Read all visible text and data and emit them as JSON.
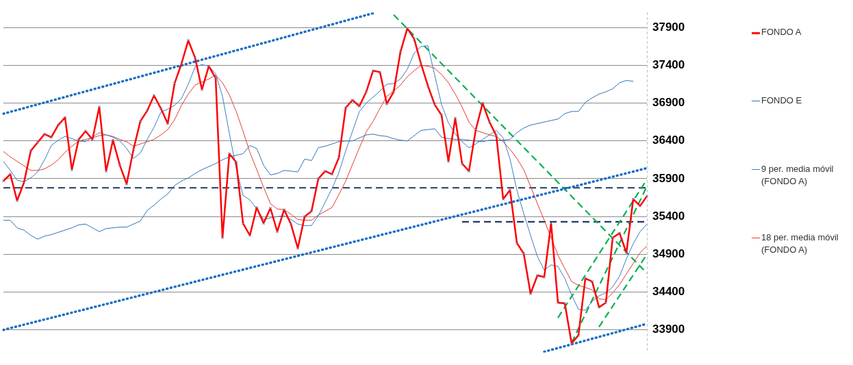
{
  "chart_data": {
    "type": "line",
    "yticks": [
      33900,
      34400,
      34900,
      35400,
      35900,
      36400,
      36900,
      37400,
      37900
    ],
    "ylim": [
      33600,
      38100
    ],
    "grid": "y",
    "legend": "right",
    "tick_labels": "y",
    "categories": [
      null,
      null,
      null,
      null,
      null,
      null,
      null,
      null,
      null,
      null,
      null,
      null,
      null,
      null,
      null,
      null,
      null,
      null,
      null,
      null,
      null,
      null,
      null,
      null,
      null,
      null,
      null,
      null,
      null,
      null,
      null,
      null,
      null,
      null,
      null,
      null,
      null,
      null,
      null,
      null,
      null,
      null,
      null,
      null,
      null,
      null,
      null,
      null,
      null,
      null,
      null,
      null,
      null,
      null,
      null,
      null,
      null,
      null,
      null,
      null,
      null,
      null,
      null,
      null,
      null,
      null,
      null,
      null,
      null,
      null,
      null,
      null,
      null,
      null,
      null,
      null,
      null,
      null,
      null,
      null,
      null,
      null,
      null,
      null,
      null,
      null,
      null,
      null,
      null,
      null,
      null,
      null,
      null,
      null,
      null
    ],
    "series": [
      {
        "name": "FONDO A",
        "color": "#ff0000",
        "marker": "cross",
        "values": [
          35870,
          35960,
          35610,
          35850,
          36270,
          36380,
          36490,
          36450,
          36610,
          36710,
          36020,
          36420,
          36530,
          36420,
          36850,
          36000,
          36410,
          36080,
          35830,
          36290,
          36660,
          36800,
          37000,
          36830,
          36630,
          37160,
          37420,
          37730,
          37500,
          37080,
          37390,
          37230,
          35120,
          36230,
          36120,
          35310,
          35150,
          35520,
          35310,
          35510,
          35200,
          35490,
          35300,
          34980,
          35400,
          35470,
          35900,
          36000,
          35960,
          36180,
          36840,
          36940,
          36860,
          37050,
          37330,
          37310,
          36890,
          37050,
          37580,
          37890,
          37750,
          37420,
          37130,
          36880,
          36740,
          36130,
          36700,
          36100,
          36000,
          36550,
          36900,
          36650,
          36470,
          35630,
          35750,
          35050,
          34910,
          34380,
          34620,
          34600,
          35310,
          34260,
          34250,
          33720,
          33830,
          34580,
          34540,
          34200,
          34260,
          35120,
          35180,
          34920,
          35630,
          35540,
          35670
        ]
      },
      {
        "name": "FONDO E",
        "color": "#2e75b6",
        "values": [
          35350,
          35350,
          35250,
          35220,
          35150,
          35100,
          35140,
          35160,
          35190,
          35220,
          35250,
          35290,
          35300,
          35250,
          35200,
          35240,
          35250,
          35260,
          35260,
          35300,
          35340,
          35480,
          35550,
          35630,
          35700,
          35810,
          35870,
          35910,
          35970,
          36020,
          36060,
          36100,
          36150,
          36190,
          36210,
          36230,
          36340,
          36300,
          36080,
          35950,
          35970,
          36010,
          36000,
          35990,
          36160,
          36140,
          36310,
          36330,
          36360,
          36390,
          36400,
          36400,
          36440,
          36480,
          36490,
          36470,
          36460,
          36430,
          36410,
          36400,
          36470,
          36540,
          36550,
          36560,
          36450,
          36430,
          36420,
          36420,
          36410,
          36400,
          36390,
          36410,
          36410,
          36410,
          36420,
          36510,
          36570,
          36610,
          36630,
          36650,
          36670,
          36690,
          36760,
          36790,
          36790,
          36910,
          36970,
          37020,
          37050,
          37090,
          37170,
          37200,
          37190,
          null,
          null
        ]
      },
      {
        "name": "9 per. media móvil (FONDO A)",
        "color": "#3b7dc0",
        "values": [
          36130,
          36010,
          35880,
          35860,
          35910,
          35990,
          36150,
          36340,
          36410,
          36460,
          36430,
          36400,
          36390,
          36450,
          36510,
          36480,
          36450,
          36400,
          36300,
          36170,
          36240,
          36420,
          36580,
          36780,
          36820,
          36870,
          36960,
          37150,
          37380,
          37410,
          37390,
          37290,
          36990,
          36500,
          36040,
          35680,
          35620,
          35500,
          35360,
          35380,
          35400,
          35410,
          35360,
          35300,
          35280,
          35280,
          35410,
          35590,
          35770,
          35980,
          36270,
          36530,
          36790,
          36900,
          36980,
          37060,
          37150,
          37160,
          37220,
          37350,
          37560,
          37650,
          37660,
          37270,
          36880,
          36640,
          36490,
          36390,
          36310,
          36360,
          36420,
          36480,
          36540,
          36440,
          36160,
          35750,
          35440,
          35150,
          34870,
          34690,
          34760,
          34740,
          34580,
          34360,
          34170,
          34160,
          34280,
          34350,
          34390,
          34470,
          34610,
          34840,
          35040,
          35200,
          35300
        ]
      },
      {
        "name": "18 per. media móvil (FONDO A)",
        "color": "#e53b30",
        "values": [
          36260,
          36190,
          36130,
          36070,
          36010,
          36010,
          36030,
          36080,
          36150,
          36250,
          36330,
          36400,
          36420,
          36440,
          36470,
          36480,
          36460,
          36420,
          36390,
          36330,
          36360,
          36390,
          36420,
          36480,
          36550,
          36680,
          36870,
          37020,
          37140,
          37180,
          37220,
          37270,
          37170,
          37010,
          36790,
          36530,
          36250,
          36020,
          35790,
          35570,
          35500,
          35490,
          35430,
          35360,
          35350,
          35350,
          35420,
          35470,
          35520,
          35690,
          35870,
          36090,
          36310,
          36520,
          36660,
          36830,
          36990,
          37060,
          37140,
          37250,
          37330,
          37400,
          37390,
          37360,
          37280,
          37170,
          37020,
          36850,
          36650,
          36540,
          36510,
          36480,
          36460,
          36390,
          36290,
          36170,
          36020,
          35800,
          35570,
          35350,
          35120,
          34890,
          34710,
          34540,
          34490,
          34460,
          34430,
          34310,
          34300,
          34390,
          34500,
          34640,
          34780,
          34920,
          35010
        ]
      },
      {
        "color": "#1b6ec2",
        "line_style": "dotted",
        "values": [
          36760,
          null,
          null,
          null,
          null,
          null,
          null,
          null,
          null,
          null,
          null,
          null,
          null,
          null,
          null,
          null,
          null,
          null,
          null,
          null,
          null,
          null,
          null,
          null,
          null,
          null,
          null,
          null,
          null,
          null,
          null,
          null,
          null,
          null,
          null,
          null,
          null,
          null,
          null,
          null,
          null,
          null,
          null,
          null,
          null,
          null,
          null,
          null,
          null,
          null,
          null,
          null,
          null,
          null,
          38090,
          null,
          null,
          null,
          null,
          null,
          null,
          null,
          null,
          null,
          null,
          null,
          null,
          null,
          null,
          null,
          null,
          null,
          null,
          null,
          null,
          null,
          null,
          null,
          null,
          null,
          null,
          null,
          null,
          null,
          null,
          null,
          null,
          null,
          null,
          null,
          null,
          null,
          null,
          null,
          null
        ]
      },
      {
        "color": "#1b6ec2",
        "line_style": "dotted",
        "values": [
          33900,
          null,
          null,
          null,
          null,
          null,
          null,
          null,
          null,
          null,
          null,
          null,
          null,
          null,
          null,
          null,
          null,
          null,
          null,
          null,
          null,
          null,
          null,
          null,
          null,
          null,
          null,
          null,
          null,
          null,
          null,
          null,
          null,
          null,
          null,
          null,
          null,
          null,
          null,
          null,
          null,
          null,
          null,
          null,
          null,
          null,
          null,
          null,
          null,
          null,
          null,
          null,
          null,
          null,
          null,
          null,
          null,
          null,
          null,
          null,
          null,
          null,
          null,
          null,
          null,
          null,
          null,
          null,
          null,
          null,
          null,
          null,
          null,
          null,
          null,
          null,
          null,
          null,
          null,
          null,
          null,
          null,
          null,
          null,
          null,
          null,
          null,
          null,
          null,
          null,
          null,
          null,
          null,
          null,
          36040
        ]
      },
      {
        "color": "#1b6ec2",
        "line_style": "dotted",
        "values": [
          null,
          null,
          null,
          null,
          null,
          null,
          null,
          null,
          null,
          null,
          null,
          null,
          null,
          null,
          null,
          null,
          null,
          null,
          null,
          null,
          null,
          null,
          null,
          null,
          null,
          null,
          null,
          null,
          null,
          null,
          null,
          null,
          null,
          null,
          null,
          null,
          null,
          null,
          null,
          null,
          null,
          null,
          null,
          null,
          null,
          null,
          null,
          null,
          null,
          null,
          null,
          null,
          null,
          null,
          null,
          null,
          null,
          null,
          null,
          null,
          null,
          null,
          null,
          null,
          null,
          null,
          null,
          null,
          null,
          null,
          null,
          null,
          null,
          null,
          null,
          null,
          null,
          null,
          null,
          33610,
          null,
          null,
          null,
          null,
          null,
          null,
          null,
          null,
          null,
          null,
          null,
          null,
          null,
          null,
          33980
        ]
      },
      {
        "color": "#00b050",
        "line_style": "dashed",
        "values": [
          null,
          null,
          null,
          null,
          null,
          null,
          null,
          null,
          null,
          null,
          null,
          null,
          null,
          null,
          null,
          null,
          null,
          null,
          null,
          null,
          null,
          null,
          null,
          null,
          null,
          null,
          null,
          null,
          null,
          null,
          null,
          null,
          null,
          null,
          null,
          null,
          null,
          null,
          null,
          null,
          null,
          null,
          null,
          null,
          null,
          null,
          null,
          null,
          null,
          null,
          null,
          null,
          null,
          null,
          null,
          null,
          null,
          38070,
          null,
          null,
          null,
          null,
          null,
          null,
          null,
          null,
          null,
          null,
          null,
          null,
          null,
          null,
          null,
          null,
          null,
          null,
          null,
          null,
          null,
          null,
          null,
          null,
          null,
          null,
          null,
          null,
          null,
          null,
          null,
          null,
          null,
          null,
          null,
          null,
          34650
        ]
      },
      {
        "color": "#00b050",
        "line_style": "dashed",
        "values": [
          null,
          null,
          null,
          null,
          null,
          null,
          null,
          null,
          null,
          null,
          null,
          null,
          null,
          null,
          null,
          null,
          null,
          null,
          null,
          null,
          null,
          null,
          null,
          null,
          null,
          null,
          null,
          null,
          null,
          null,
          null,
          null,
          null,
          null,
          null,
          null,
          null,
          null,
          null,
          null,
          null,
          null,
          null,
          null,
          null,
          null,
          null,
          null,
          null,
          null,
          null,
          null,
          null,
          null,
          null,
          null,
          null,
          null,
          null,
          null,
          null,
          null,
          null,
          null,
          null,
          null,
          null,
          null,
          null,
          null,
          null,
          null,
          null,
          null,
          null,
          null,
          null,
          null,
          null,
          null,
          null,
          34060,
          null,
          null,
          null,
          null,
          null,
          null,
          null,
          null,
          null,
          null,
          null,
          null,
          35890
        ]
      },
      {
        "color": "#00b050",
        "line_style": "dashed",
        "values": [
          null,
          null,
          null,
          null,
          null,
          null,
          null,
          null,
          null,
          null,
          null,
          null,
          null,
          null,
          null,
          null,
          null,
          null,
          null,
          null,
          null,
          null,
          null,
          null,
          null,
          null,
          null,
          null,
          null,
          null,
          null,
          null,
          null,
          null,
          null,
          null,
          null,
          null,
          null,
          null,
          null,
          null,
          null,
          null,
          null,
          null,
          null,
          null,
          null,
          null,
          null,
          null,
          null,
          null,
          null,
          null,
          null,
          null,
          null,
          null,
          null,
          null,
          null,
          null,
          null,
          null,
          null,
          null,
          null,
          null,
          null,
          null,
          null,
          null,
          null,
          null,
          null,
          null,
          null,
          null,
          null,
          null,
          null,
          33730,
          null,
          null,
          null,
          null,
          null,
          null,
          null,
          null,
          null,
          null,
          35800
        ]
      },
      {
        "color": "#00b050",
        "line_style": "dashed",
        "values": [
          null,
          null,
          null,
          null,
          null,
          null,
          null,
          null,
          null,
          null,
          null,
          null,
          null,
          null,
          null,
          null,
          null,
          null,
          null,
          null,
          null,
          null,
          null,
          null,
          null,
          null,
          null,
          null,
          null,
          null,
          null,
          null,
          null,
          null,
          null,
          null,
          null,
          null,
          null,
          null,
          null,
          null,
          null,
          null,
          null,
          null,
          null,
          null,
          null,
          null,
          null,
          null,
          null,
          null,
          null,
          null,
          null,
          null,
          null,
          null,
          null,
          null,
          null,
          null,
          null,
          null,
          null,
          null,
          null,
          null,
          null,
          null,
          null,
          null,
          null,
          null,
          null,
          null,
          null,
          null,
          null,
          null,
          null,
          null,
          null,
          null,
          null,
          33940,
          null,
          null,
          null,
          null,
          null,
          null,
          34900
        ]
      },
      {
        "color": "#1f3864",
        "line_style": "dashed",
        "values": [
          35780,
          null,
          null,
          null,
          null,
          null,
          null,
          null,
          null,
          null,
          null,
          null,
          null,
          null,
          null,
          null,
          null,
          null,
          null,
          null,
          null,
          null,
          null,
          null,
          null,
          null,
          null,
          null,
          null,
          null,
          null,
          null,
          null,
          null,
          null,
          null,
          null,
          null,
          null,
          null,
          null,
          null,
          null,
          null,
          null,
          null,
          null,
          null,
          null,
          null,
          null,
          null,
          null,
          null,
          null,
          null,
          null,
          null,
          null,
          null,
          null,
          null,
          null,
          null,
          null,
          null,
          null,
          null,
          null,
          null,
          null,
          null,
          null,
          null,
          null,
          null,
          null,
          null,
          null,
          null,
          null,
          null,
          null,
          null,
          null,
          null,
          null,
          null,
          null,
          null,
          null,
          null,
          null,
          null,
          35780
        ]
      },
      {
        "color": "#1f3864",
        "line_style": "dashed",
        "values": [
          null,
          null,
          null,
          null,
          null,
          null,
          null,
          null,
          null,
          null,
          null,
          null,
          null,
          null,
          null,
          null,
          null,
          null,
          null,
          null,
          null,
          null,
          null,
          null,
          null,
          null,
          null,
          null,
          null,
          null,
          null,
          null,
          null,
          null,
          null,
          null,
          null,
          null,
          null,
          null,
          null,
          null,
          null,
          null,
          null,
          null,
          null,
          null,
          null,
          null,
          null,
          null,
          null,
          null,
          null,
          null,
          null,
          null,
          null,
          null,
          null,
          null,
          null,
          null,
          null,
          null,
          null,
          35330,
          null,
          null,
          null,
          null,
          null,
          null,
          null,
          null,
          null,
          null,
          null,
          null,
          null,
          null,
          null,
          null,
          null,
          null,
          null,
          null,
          null,
          null,
          null,
          null,
          null,
          null,
          35330
        ]
      }
    ]
  }
}
